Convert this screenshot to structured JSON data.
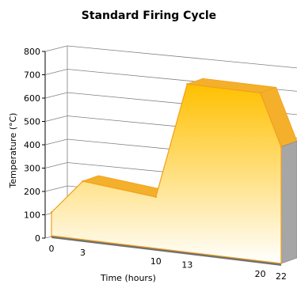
{
  "chart_data": {
    "type": "area",
    "title": "Standard Firing Cycle",
    "xlabel": "Time (hours)",
    "ylabel": "Temperature (°C)",
    "x": [
      0,
      3,
      10,
      13,
      20,
      22
    ],
    "values": [
      100,
      250,
      220,
      720,
      720,
      500
    ],
    "x_ticks": [
      "0",
      "3",
      "10",
      "13",
      "20",
      "22"
    ],
    "y_ticks": [
      "0",
      "100",
      "200",
      "300",
      "400",
      "500",
      "600",
      "700",
      "800"
    ],
    "ylim": [
      0,
      800
    ],
    "xlim": [
      0,
      22
    ],
    "grid": true,
    "legend": "none",
    "view": "3d",
    "colors": {
      "fill_top": "#ffc000",
      "fill_bottom": "#ffffff",
      "outline": "#f0a020",
      "side": "#a6a6a6",
      "grid": "#808080"
    }
  }
}
